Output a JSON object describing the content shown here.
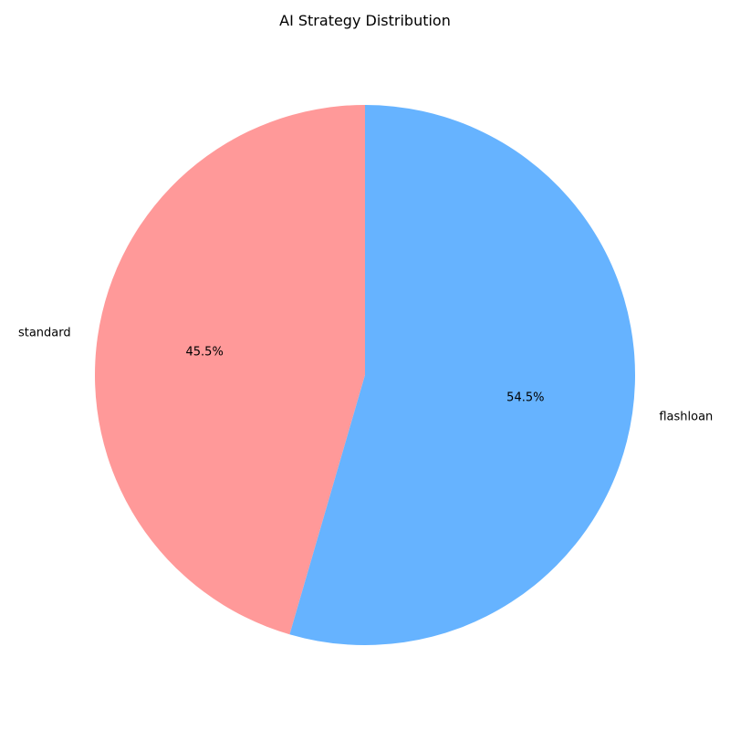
{
  "chart_data": {
    "type": "pie",
    "title": "AI Strategy Distribution",
    "start_angle_deg": 90,
    "direction": "counterclockwise",
    "slices": [
      {
        "label": "standard",
        "value": 45.5,
        "pct_label": "45.5%",
        "color": "#ff9999"
      },
      {
        "label": "flashloan",
        "value": 54.5,
        "pct_label": "54.5%",
        "color": "#66b3ff"
      }
    ]
  }
}
